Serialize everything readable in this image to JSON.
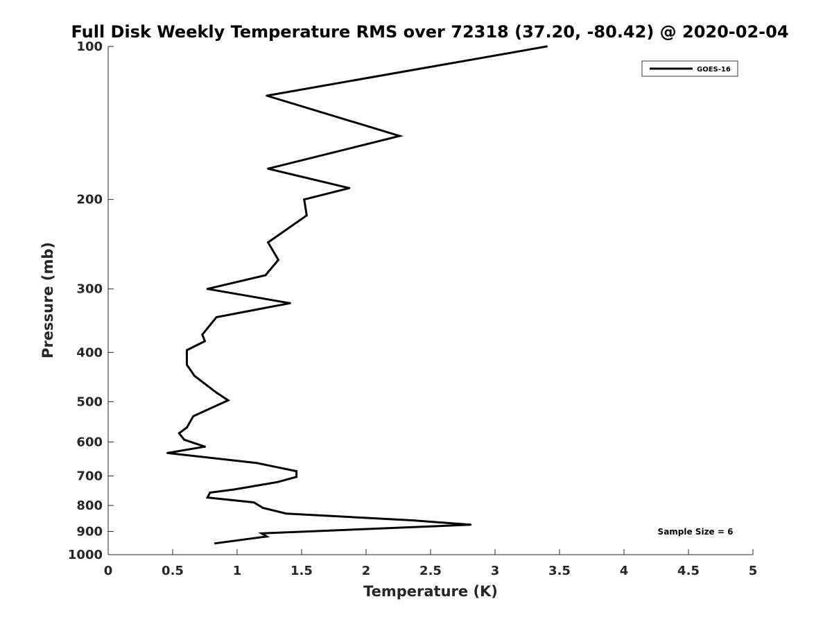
{
  "chart_data": {
    "type": "line",
    "title": "Full Disk Weekly Temperature RMS over 72318 (37.20, -80.42) @ 2020-02-04",
    "xlabel": "Temperature (K)",
    "ylabel": "Pressure (mb)",
    "xlim": [
      0,
      5
    ],
    "ylim": [
      100,
      1000
    ],
    "y_scale": "log",
    "y_reversed": true,
    "x_ticks": [
      "0",
      "0.5",
      "1",
      "1.5",
      "2",
      "2.5",
      "3",
      "3.5",
      "4",
      "4.5",
      "5"
    ],
    "y_ticks": [
      "100",
      "200",
      "300",
      "400",
      "500",
      "600",
      "700",
      "800",
      "900",
      "1000"
    ],
    "grid": false,
    "legend_position": "top-right",
    "series": [
      {
        "name": "GOES-16",
        "color": "#000000",
        "x": [
          3.4,
          1.23,
          2.26,
          1.24,
          1.87,
          1.52,
          1.54,
          1.24,
          1.32,
          1.22,
          0.77,
          1.41,
          0.84,
          0.73,
          0.75,
          0.61,
          0.61,
          0.67,
          0.84,
          0.93,
          0.66,
          0.61,
          0.55,
          0.59,
          0.75,
          0.46,
          1.15,
          1.46,
          1.46,
          1.31,
          0.98,
          0.79,
          0.77,
          1.13,
          1.2,
          1.38,
          2.36,
          2.81,
          1.19,
          1.23,
          0.83
        ],
        "y": [
          100,
          125,
          150,
          174,
          190,
          200,
          215,
          243,
          263,
          282,
          300,
          320,
          341,
          369,
          380,
          396,
          423,
          445,
          480,
          497,
          534,
          562,
          577,
          594,
          613,
          631,
          660,
          685,
          703,
          720,
          744,
          755,
          772,
          789,
          809,
          830,
          856,
          873,
          908,
          921,
          950
        ]
      }
    ],
    "annotation": "Sample Size = 6"
  }
}
